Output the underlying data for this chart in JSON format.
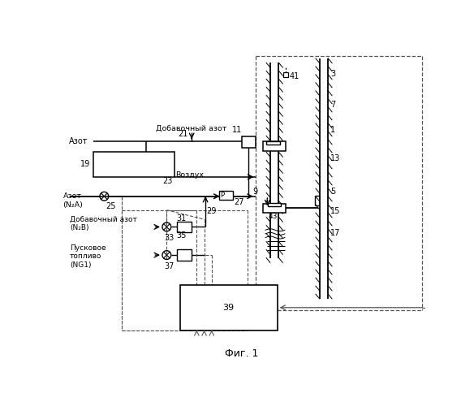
{
  "bg_color": "#ffffff",
  "caption": "Фиг. 1",
  "labels": {
    "azot": "Азот",
    "azot_n2a": "Азот\n(N₂A)",
    "vozduh": "Воздух",
    "dobavochny_azot": "Добавочный азот",
    "dobavochny_azot_n2b": "Добавочный азот\n(N₂B)",
    "puskovoe_toplivo": "Пусковое\nтопливо\n(NG1)",
    "n1": "1",
    "n3": "3",
    "n5": "5",
    "n7": "7",
    "n9": "9",
    "n11": "11",
    "n13": "13",
    "n15": "15",
    "n17": "17",
    "n19": "19",
    "n21": "21",
    "n23": "23",
    "n25": "25",
    "n27": "27",
    "n29": "29",
    "n31": "31",
    "n33": "33",
    "n35": "35",
    "n37": "37",
    "n39": "39",
    "n41": "41",
    "n43": "43",
    "P_label": "P"
  }
}
